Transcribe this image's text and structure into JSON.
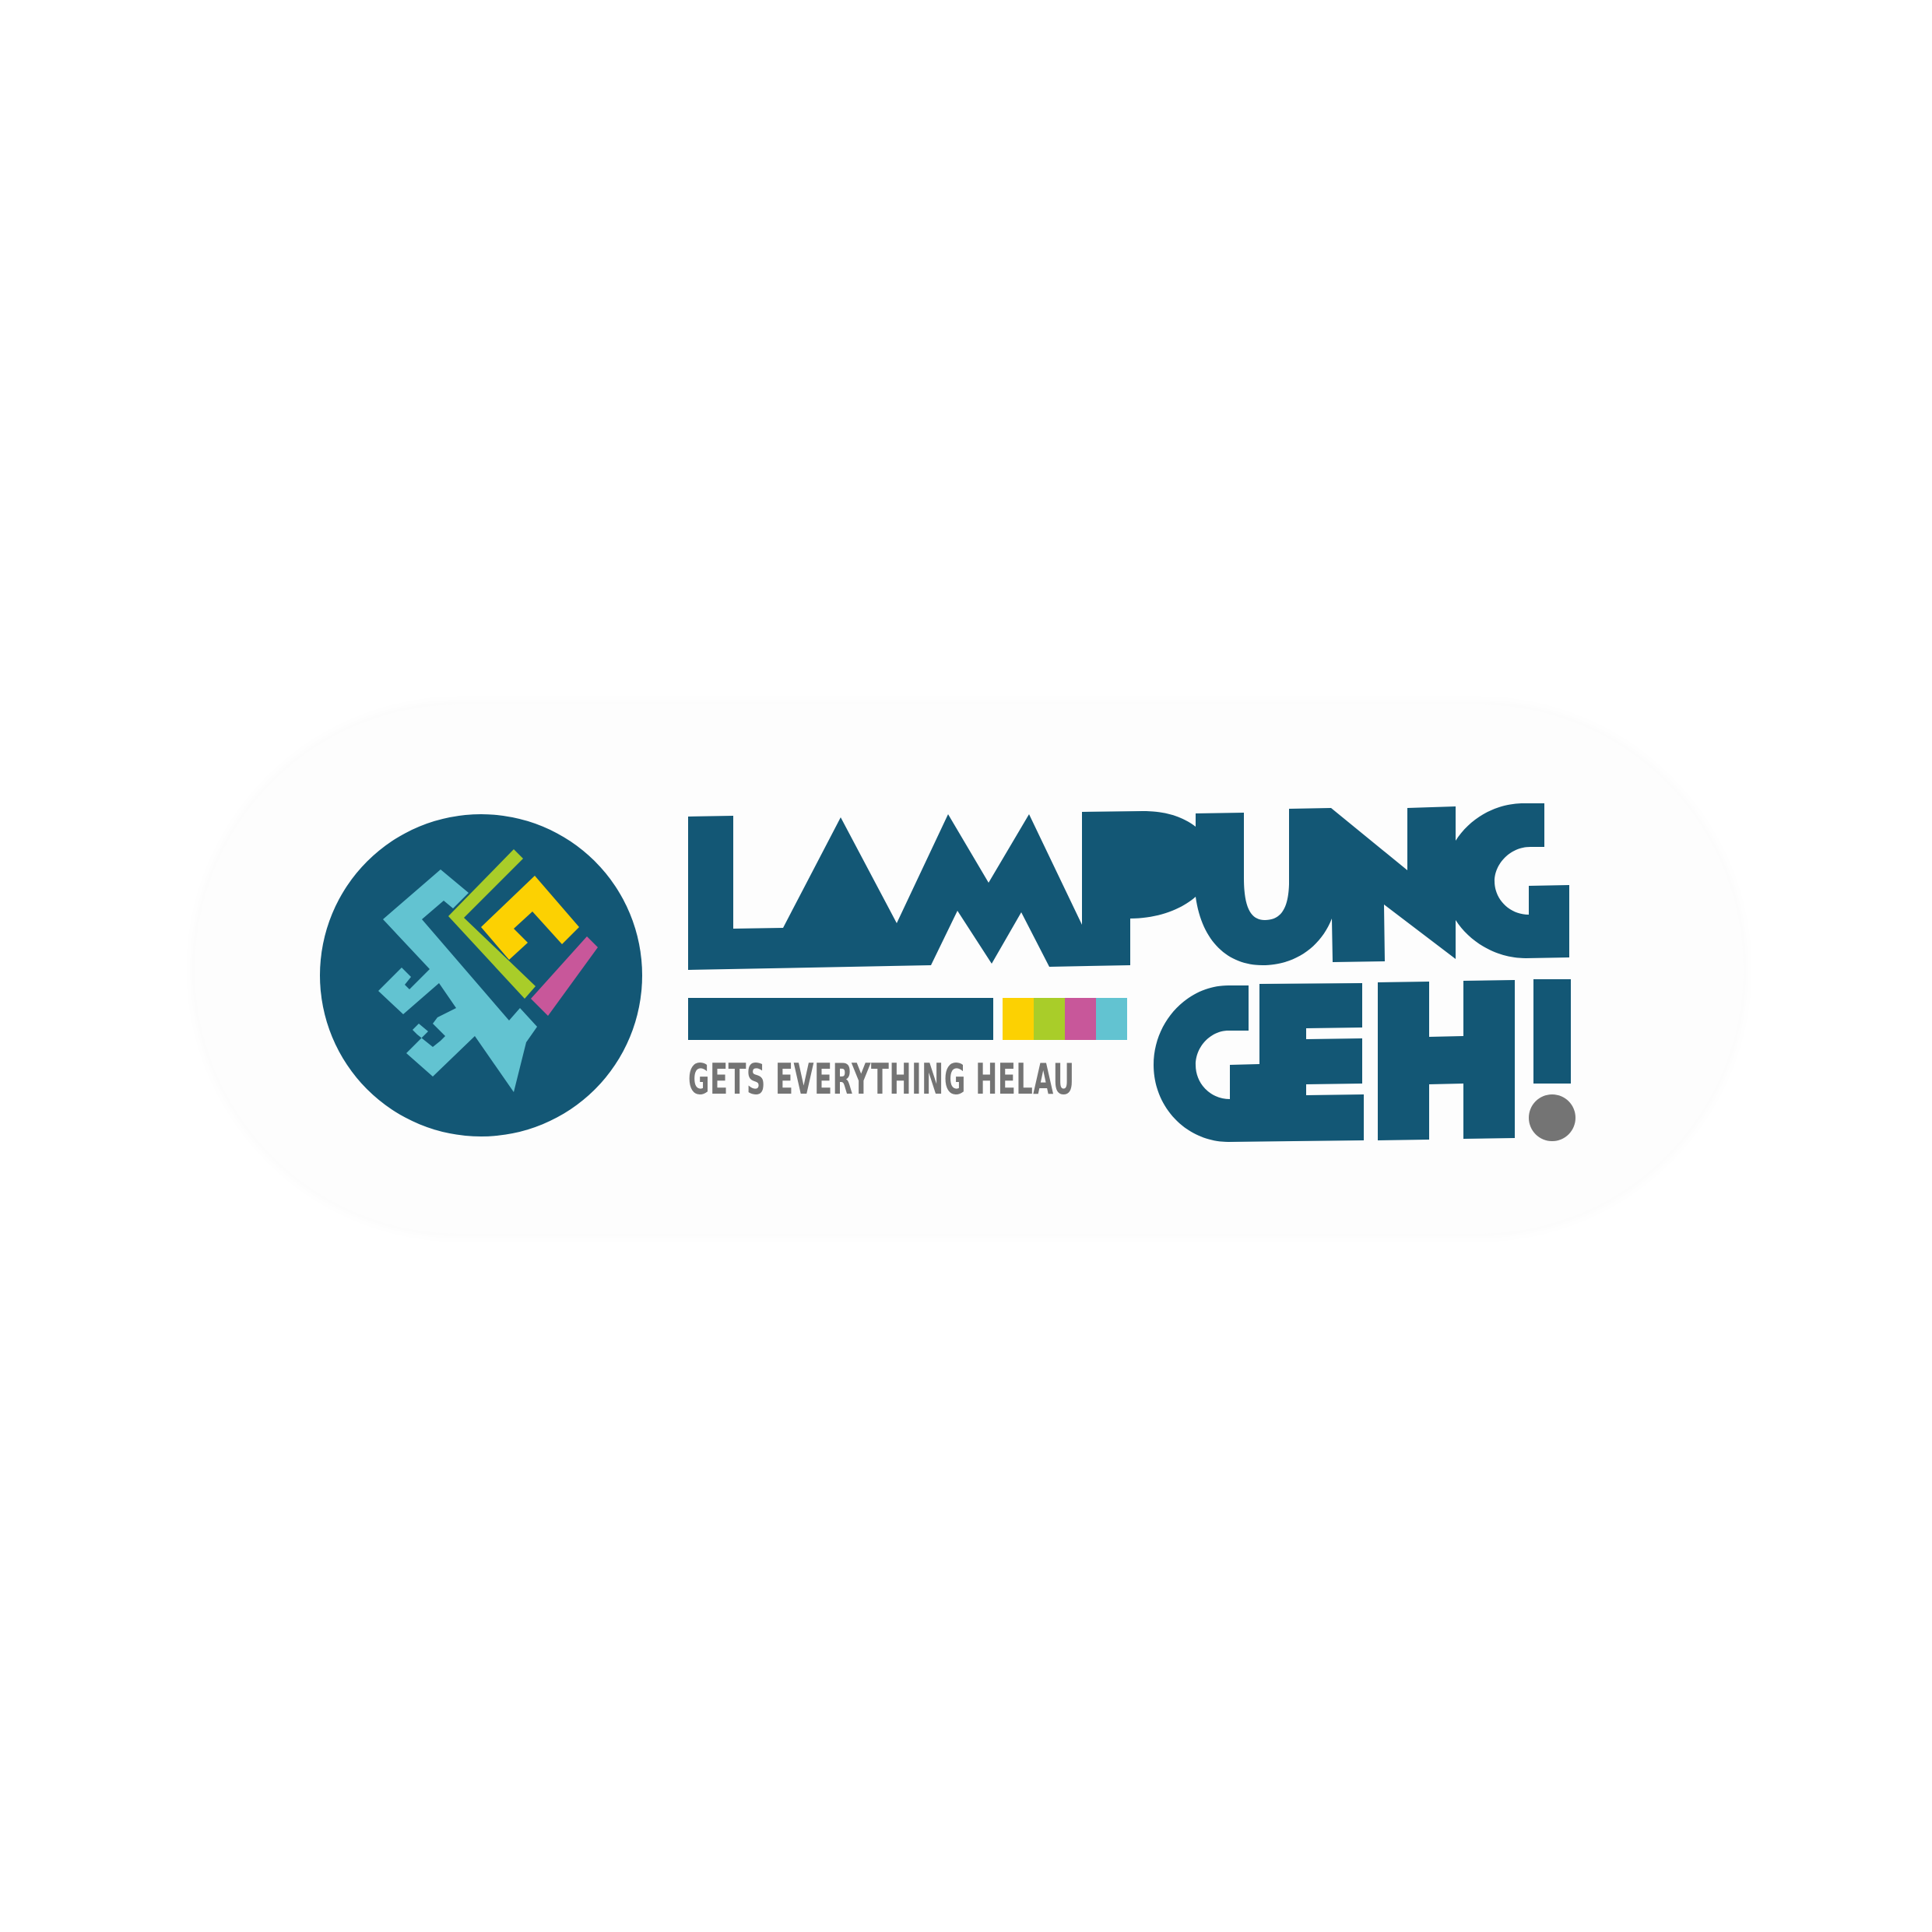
{
  "logo": {
    "line1": "LAMPUNG",
    "line2": "GEH!",
    "tagline": "GETS EVERYTHING HELAU"
  },
  "colors": {
    "navy": "#135775",
    "teal": "#62c3d1",
    "yellow": "#fcd102",
    "green": "#a9cd29",
    "magenta": "#c8579a",
    "gray": "#747474",
    "badge": "#fdfdfd"
  },
  "icons": [
    "siger-emblem-icon",
    "color-stripe-icon",
    "exclamation-dot-icon"
  ]
}
